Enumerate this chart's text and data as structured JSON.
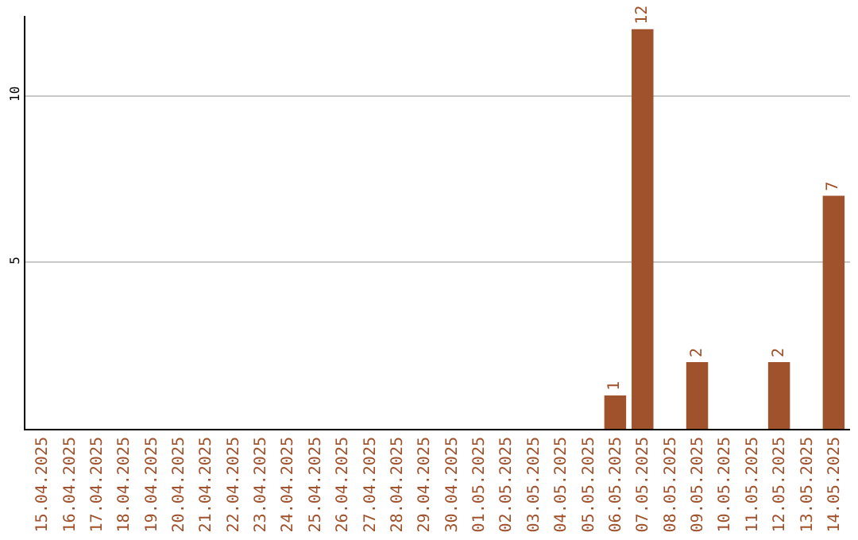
{
  "chart_data": {
    "type": "bar",
    "categories": [
      "15.04.2025",
      "16.04.2025",
      "17.04.2025",
      "18.04.2025",
      "19.04.2025",
      "20.04.2025",
      "21.04.2025",
      "22.04.2025",
      "23.04.2025",
      "24.04.2025",
      "25.04.2025",
      "26.04.2025",
      "27.04.2025",
      "28.04.2025",
      "29.04.2025",
      "30.04.2025",
      "01.05.2025",
      "02.05.2025",
      "03.05.2025",
      "04.05.2025",
      "05.05.2025",
      "06.05.2025",
      "07.05.2025",
      "08.05.2025",
      "09.05.2025",
      "10.05.2025",
      "11.05.2025",
      "12.05.2025",
      "13.05.2025",
      "14.05.2025"
    ],
    "values": [
      0,
      0,
      0,
      0,
      0,
      0,
      0,
      0,
      0,
      0,
      0,
      0,
      0,
      0,
      0,
      0,
      0,
      0,
      0,
      0,
      0,
      1,
      12,
      0,
      2,
      0,
      0,
      2,
      0,
      7
    ],
    "value_labels": [
      null,
      null,
      null,
      null,
      null,
      null,
      null,
      null,
      null,
      null,
      null,
      null,
      null,
      null,
      null,
      null,
      null,
      null,
      null,
      null,
      null,
      "1",
      "12",
      null,
      "2",
      null,
      null,
      "2",
      null,
      "7"
    ],
    "color": "#a0522d",
    "ylim": [
      0,
      12.4
    ],
    "yticks": [
      5,
      10
    ],
    "grid": "y",
    "legend": false
  }
}
